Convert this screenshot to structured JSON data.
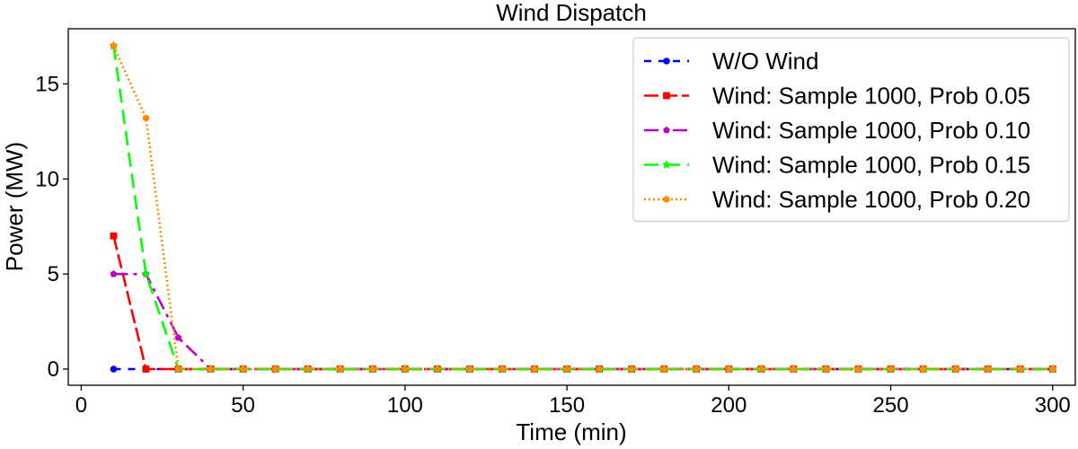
{
  "chart_data": {
    "type": "line",
    "title": "Wind Dispatch",
    "xlabel": "Time (min)",
    "ylabel": "Power (MW)",
    "xlim": [
      -4,
      307
    ],
    "ylim": [
      -0.85,
      17.9
    ],
    "xticks": [
      0,
      50,
      100,
      150,
      200,
      250,
      300
    ],
    "yticks": [
      0,
      5,
      10,
      15
    ],
    "grid": false,
    "legend_position": "top-right",
    "x": [
      10,
      20,
      30,
      40,
      50,
      60,
      70,
      80,
      90,
      100,
      110,
      120,
      130,
      140,
      150,
      160,
      170,
      180,
      190,
      200,
      210,
      220,
      230,
      240,
      250,
      260,
      270,
      280,
      290,
      300
    ],
    "series": [
      {
        "name": "W/O Wind",
        "color": "#0000ff",
        "dash": "8,8",
        "marker": "circle",
        "values": [
          0,
          0,
          0,
          0,
          0,
          0,
          0,
          0,
          0,
          0,
          0,
          0,
          0,
          0,
          0,
          0,
          0,
          0,
          0,
          0,
          0,
          0,
          0,
          0,
          0,
          0,
          0,
          0,
          0,
          0
        ]
      },
      {
        "name": "Wind: Sample 1000, Prob 0.05",
        "color": "#ff0000",
        "dash": "16,5",
        "marker": "square",
        "values": [
          7.0,
          0,
          0,
          0,
          0,
          0,
          0,
          0,
          0,
          0,
          0,
          0,
          0,
          0,
          0,
          0,
          0,
          0,
          0,
          0,
          0,
          0,
          0,
          0,
          0,
          0,
          0,
          0,
          0,
          0
        ]
      },
      {
        "name": "Wind: Sample 1000, Prob 0.10",
        "color": "#c000c0",
        "dash": "16,6,4,6",
        "marker": "pentagon",
        "values": [
          5.0,
          5.0,
          1.65,
          0,
          0,
          0,
          0,
          0,
          0,
          0,
          0,
          0,
          0,
          0,
          0,
          0,
          0,
          0,
          0,
          0,
          0,
          0,
          0,
          0,
          0,
          0,
          0,
          0,
          0,
          0
        ]
      },
      {
        "name": "Wind: Sample 1000, Prob 0.15",
        "color": "#00ff00",
        "dash": "16,8",
        "marker": "star",
        "values": [
          17.0,
          5.0,
          0,
          0,
          0,
          0,
          0,
          0,
          0,
          0,
          0,
          0,
          0,
          0,
          0,
          0,
          0,
          0,
          0,
          0,
          0,
          0,
          0,
          0,
          0,
          0,
          0,
          0,
          0,
          0
        ]
      },
      {
        "name": "Wind: Sample 1000, Prob 0.20",
        "color": "#ff8c00",
        "dash": "2,3",
        "marker": "hexagon",
        "values": [
          17.0,
          13.2,
          0,
          0,
          0,
          0,
          0,
          0,
          0,
          0,
          0,
          0,
          0,
          0,
          0,
          0,
          0,
          0,
          0,
          0,
          0,
          0,
          0,
          0,
          0,
          0,
          0,
          0,
          0,
          0
        ]
      }
    ]
  }
}
